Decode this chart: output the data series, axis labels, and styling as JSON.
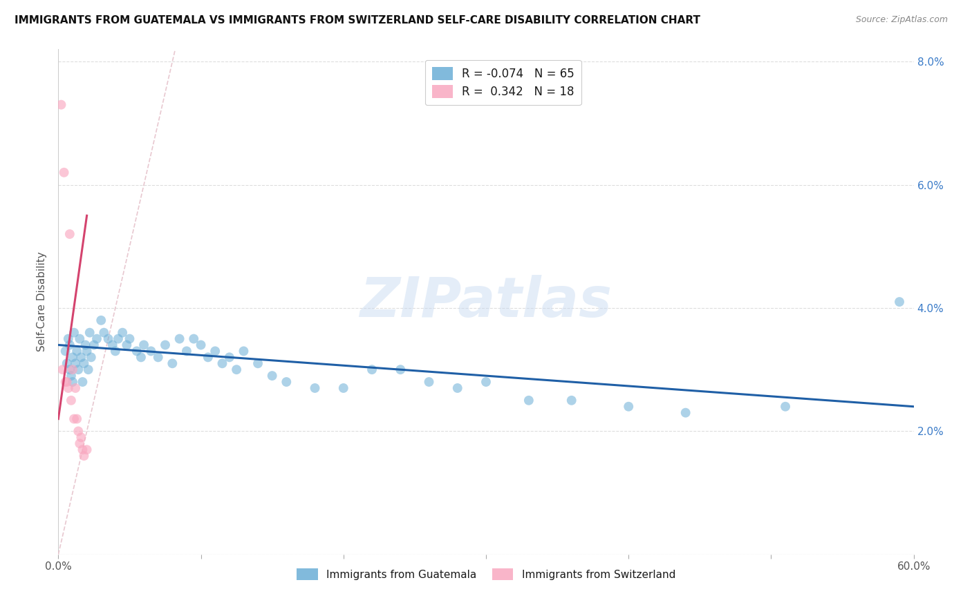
{
  "title": "IMMIGRANTS FROM GUATEMALA VS IMMIGRANTS FROM SWITZERLAND SELF-CARE DISABILITY CORRELATION CHART",
  "source": "Source: ZipAtlas.com",
  "ylabel": "Self-Care Disability",
  "xlim": [
    0.0,
    0.6
  ],
  "ylim": [
    0.0,
    0.082
  ],
  "xticks": [
    0.0,
    0.1,
    0.2,
    0.3,
    0.4,
    0.5,
    0.6
  ],
  "xticklabels": [
    "0.0%",
    "",
    "",
    "",
    "",
    "",
    "60.0%"
  ],
  "yticks": [
    0.0,
    0.02,
    0.04,
    0.06,
    0.08
  ],
  "right_yticklabels": [
    "",
    "2.0%",
    "4.0%",
    "6.0%",
    "8.0%"
  ],
  "blue_color": "#6baed6",
  "pink_color": "#f9a8c0",
  "blue_line_color": "#1f5fa6",
  "pink_line_color": "#d4436e",
  "ref_line_color": "#e8c8d0",
  "watermark": "ZIPatlas",
  "blue_scatter_x": [
    0.005,
    0.006,
    0.007,
    0.008,
    0.008,
    0.009,
    0.01,
    0.01,
    0.011,
    0.012,
    0.013,
    0.014,
    0.015,
    0.016,
    0.017,
    0.018,
    0.019,
    0.02,
    0.021,
    0.022,
    0.023,
    0.025,
    0.027,
    0.03,
    0.032,
    0.035,
    0.038,
    0.04,
    0.042,
    0.045,
    0.048,
    0.05,
    0.055,
    0.058,
    0.06,
    0.065,
    0.07,
    0.075,
    0.08,
    0.085,
    0.09,
    0.095,
    0.1,
    0.105,
    0.11,
    0.115,
    0.12,
    0.125,
    0.13,
    0.14,
    0.15,
    0.16,
    0.18,
    0.2,
    0.22,
    0.24,
    0.26,
    0.28,
    0.3,
    0.33,
    0.36,
    0.4,
    0.44,
    0.51,
    0.59
  ],
  "blue_scatter_y": [
    0.033,
    0.031,
    0.035,
    0.03,
    0.034,
    0.029,
    0.032,
    0.028,
    0.036,
    0.031,
    0.033,
    0.03,
    0.035,
    0.032,
    0.028,
    0.031,
    0.034,
    0.033,
    0.03,
    0.036,
    0.032,
    0.034,
    0.035,
    0.038,
    0.036,
    0.035,
    0.034,
    0.033,
    0.035,
    0.036,
    0.034,
    0.035,
    0.033,
    0.032,
    0.034,
    0.033,
    0.032,
    0.034,
    0.031,
    0.035,
    0.033,
    0.035,
    0.034,
    0.032,
    0.033,
    0.031,
    0.032,
    0.03,
    0.033,
    0.031,
    0.029,
    0.028,
    0.027,
    0.027,
    0.03,
    0.03,
    0.028,
    0.027,
    0.028,
    0.025,
    0.025,
    0.024,
    0.023,
    0.024,
    0.041
  ],
  "pink_scatter_x": [
    0.002,
    0.003,
    0.004,
    0.005,
    0.006,
    0.007,
    0.008,
    0.009,
    0.01,
    0.011,
    0.012,
    0.013,
    0.014,
    0.015,
    0.016,
    0.017,
    0.018,
    0.02
  ],
  "pink_scatter_y": [
    0.073,
    0.03,
    0.062,
    0.028,
    0.028,
    0.027,
    0.052,
    0.025,
    0.03,
    0.022,
    0.027,
    0.022,
    0.02,
    0.018,
    0.019,
    0.017,
    0.016,
    0.017
  ],
  "blue_trend_x": [
    0.0,
    0.6
  ],
  "blue_trend_y": [
    0.034,
    0.024
  ],
  "pink_trend_x": [
    0.0,
    0.02
  ],
  "pink_trend_y": [
    0.022,
    0.055
  ],
  "ref_line_x": [
    0.0,
    0.082
  ],
  "ref_line_y": [
    0.0,
    0.082
  ],
  "bottom_legend_blue": "Immigrants from Guatemala",
  "bottom_legend_pink": "Immigrants from Switzerland",
  "top_legend_blue": "R = -0.074   N = 65",
  "top_legend_pink": "R =  0.342   N = 18"
}
